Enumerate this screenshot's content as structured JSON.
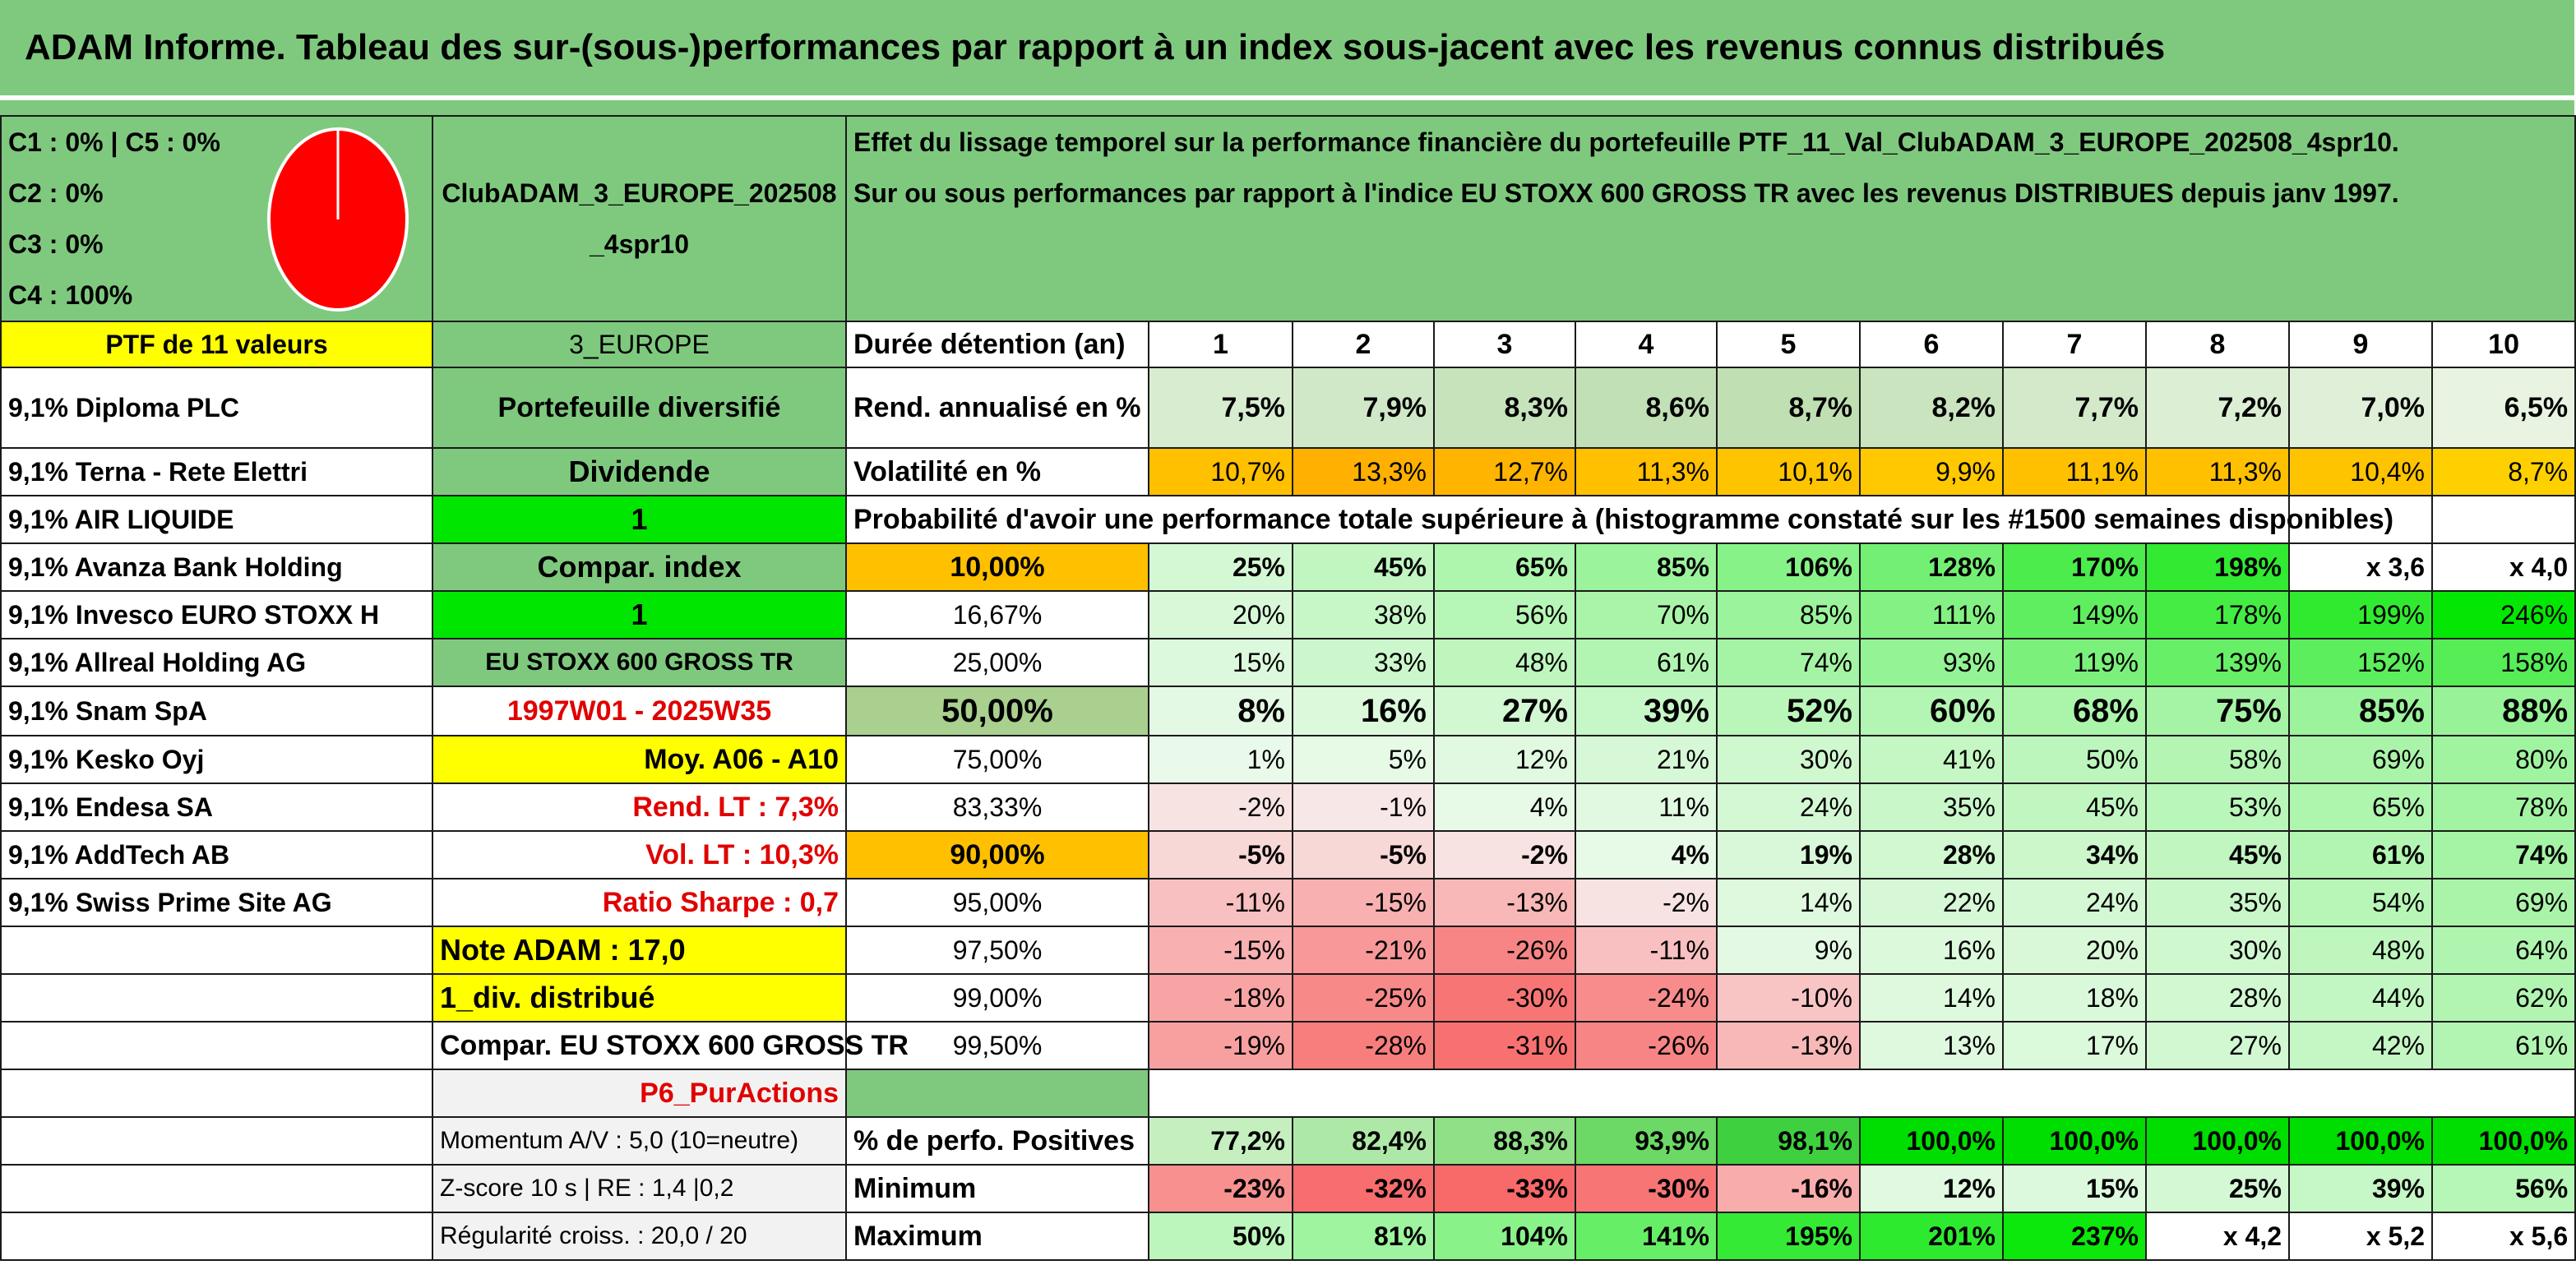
{
  "title": "ADAM Informe. Tableau des sur-(sous-)performances par rapport à un index sous-jacent avec les revenus connus distribués",
  "legend": [
    "C1 : 0% | C5 : 0%",
    "C2 : 0%",
    "C3 : 0%",
    "C4 : 100%"
  ],
  "pie": {
    "C4": 100,
    "color": "#ff0000"
  },
  "club_name": "ClubADAM_3_EUROPE_202508_4spr10",
  "description_line1": "Effet du lissage temporel sur la performance financière du portefeuille PTF_11_Val_ClubADAM_3_EUROPE_202508_4spr10.",
  "description_line2": "Sur ou sous performances par rapport à l'indice EU STOXX 600 GROSS TR avec les revenus DISTRIBUES depuis janv 1997.",
  "ptf_header": "PTF de 11 valeurs",
  "region": "3_EUROPE",
  "durations_label": "Durée détention (an)",
  "durations": [
    "1",
    "2",
    "3",
    "4",
    "5",
    "6",
    "7",
    "8",
    "9",
    "10"
  ],
  "holdings": [
    "9,1% Diploma PLC",
    "9,1% Terna - Rete Elettri",
    "9,1% AIR LIQUIDE",
    "9,1% Avanza Bank Holding",
    "9,1% Invesco EURO STOXX H",
    "9,1% Allreal Holding AG",
    "9,1% Snam SpA",
    "9,1% Kesko Oyj",
    "9,1% Endesa SA",
    "9,1% AddTech AB",
    "9,1% Swiss Prime Site AG"
  ],
  "info": {
    "type": "Portefeuille diversifié",
    "dividend_label": "Dividende",
    "dividend_val": "1",
    "compar_label": "Compar. index",
    "compar_val": "1",
    "index_name": "EU STOXX 600 GROSS TR",
    "period": "1997W01 - 2025W35",
    "moy": "Moy. A06 - A10",
    "rend_lt": "Rend. LT : 7,3%",
    "vol_lt": "Vol. LT : 10,3%",
    "sharpe": "Ratio Sharpe : 0,7",
    "note": "Note ADAM : 17,0",
    "div": "1_div. distribué",
    "compar_full": "Compar. EU STOXX 600 GROSS TR",
    "p6": "P6_PurActions",
    "momentum": "Momentum A/V : 5,0 (10=neutre)",
    "zscore": "Z-score 10 s | RE : 1,4 |0,2",
    "regularite": "Régularité croiss. : 20,0 / 20"
  },
  "rend_label": "Rend. annualisé en %",
  "rend": [
    "7,5%",
    "7,9%",
    "8,3%",
    "8,6%",
    "8,7%",
    "8,2%",
    "7,7%",
    "7,2%",
    "7,0%",
    "6,5%"
  ],
  "vol_label": "Volatilité en %",
  "vol": [
    "10,7%",
    "13,3%",
    "12,7%",
    "11,3%",
    "10,1%",
    "9,9%",
    "11,1%",
    "11,3%",
    "10,4%",
    "8,7%"
  ],
  "prob_label": "Probabilité d'avoir une performance totale supérieure à (histogramme constaté sur les #1500 semaines disponibles)",
  "prob_rows": [
    {
      "p": "10,00%",
      "v": [
        "25%",
        "45%",
        "65%",
        "85%",
        "106%",
        "128%",
        "170%",
        "198%",
        "x 3,6",
        "x 4,0"
      ]
    },
    {
      "p": "16,67%",
      "v": [
        "20%",
        "38%",
        "56%",
        "70%",
        "85%",
        "111%",
        "149%",
        "178%",
        "199%",
        "246%"
      ]
    },
    {
      "p": "25,00%",
      "v": [
        "15%",
        "33%",
        "48%",
        "61%",
        "74%",
        "93%",
        "119%",
        "139%",
        "152%",
        "158%"
      ]
    },
    {
      "p": "50,00%",
      "v": [
        "8%",
        "16%",
        "27%",
        "39%",
        "52%",
        "60%",
        "68%",
        "75%",
        "85%",
        "88%"
      ]
    },
    {
      "p": "75,00%",
      "v": [
        "1%",
        "5%",
        "12%",
        "21%",
        "30%",
        "41%",
        "50%",
        "58%",
        "69%",
        "80%"
      ]
    },
    {
      "p": "83,33%",
      "v": [
        "-2%",
        "-1%",
        "4%",
        "11%",
        "24%",
        "35%",
        "45%",
        "53%",
        "65%",
        "78%"
      ]
    },
    {
      "p": "90,00%",
      "v": [
        "-5%",
        "-5%",
        "-2%",
        "4%",
        "19%",
        "28%",
        "34%",
        "45%",
        "61%",
        "74%"
      ]
    },
    {
      "p": "95,00%",
      "v": [
        "-11%",
        "-15%",
        "-13%",
        "-2%",
        "14%",
        "22%",
        "24%",
        "35%",
        "54%",
        "69%"
      ]
    },
    {
      "p": "97,50%",
      "v": [
        "-15%",
        "-21%",
        "-26%",
        "-11%",
        "9%",
        "16%",
        "20%",
        "30%",
        "48%",
        "64%"
      ]
    },
    {
      "p": "99,00%",
      "v": [
        "-18%",
        "-25%",
        "-30%",
        "-24%",
        "-10%",
        "14%",
        "18%",
        "28%",
        "44%",
        "62%"
      ]
    },
    {
      "p": "99,50%",
      "v": [
        "-19%",
        "-28%",
        "-31%",
        "-26%",
        "-13%",
        "13%",
        "17%",
        "27%",
        "42%",
        "61%"
      ]
    }
  ],
  "pos_label": "% de perfo. Positives",
  "pos": [
    "77,2%",
    "82,4%",
    "88,3%",
    "93,9%",
    "98,1%",
    "100,0%",
    "100,0%",
    "100,0%",
    "100,0%",
    "100,0%"
  ],
  "min_label": "Minimum",
  "min": [
    "-23%",
    "-32%",
    "-33%",
    "-30%",
    "-16%",
    "12%",
    "15%",
    "25%",
    "39%",
    "56%"
  ],
  "max_label": "Maximum",
  "max": [
    "50%",
    "81%",
    "104%",
    "141%",
    "195%",
    "201%",
    "237%",
    "x 4,2",
    "x 5,2",
    "x 5,6"
  ]
}
